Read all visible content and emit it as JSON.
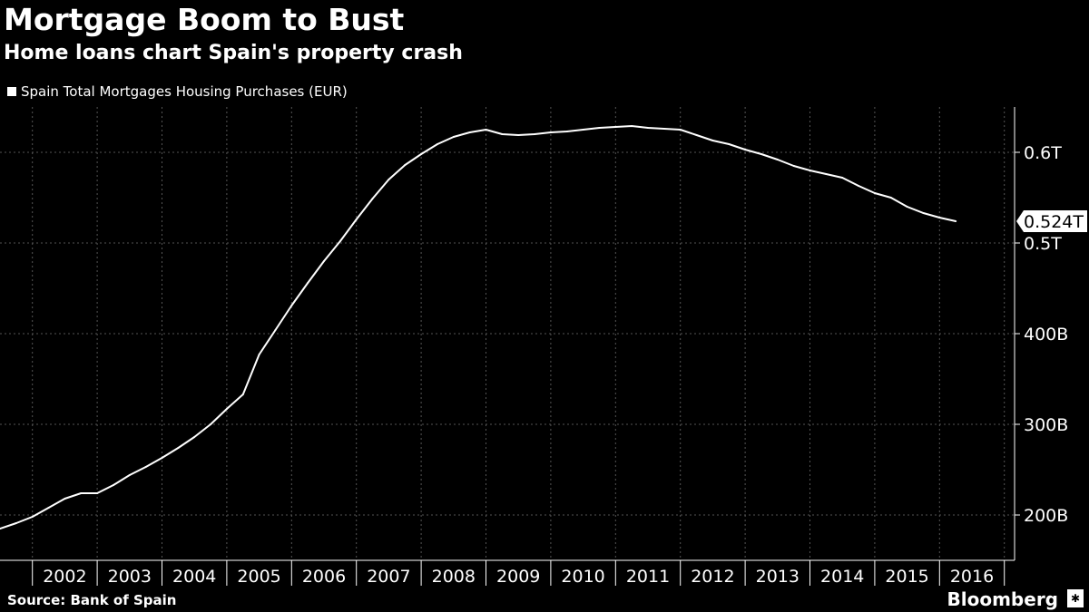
{
  "header": {
    "title": "Mortgage Boom to Bust",
    "subtitle": "Home loans chart Spain's property crash"
  },
  "footer": {
    "source": "Source:  Bank of Spain",
    "brand": "Bloomberg",
    "brand_icon": "bloomberg-terminal-icon"
  },
  "colors": {
    "background": "#000000",
    "line": "#ffffff",
    "grid": "#555555"
  },
  "chart_data": {
    "type": "line",
    "title": "Mortgage Boom to Bust",
    "subtitle": "Home loans chart Spain's property crash",
    "xlabel": "",
    "ylabel": "",
    "x_tick_labels": [
      "2002",
      "2003",
      "2004",
      "2005",
      "2006",
      "2007",
      "2008",
      "2009",
      "2010",
      "2011",
      "2012",
      "2013",
      "2014",
      "2015",
      "2016"
    ],
    "y_tick_values": [
      200,
      300,
      400,
      500,
      600
    ],
    "y_tick_labels": [
      "200B",
      "300B",
      "400B",
      "0.5T",
      "0.6T"
    ],
    "ylim": [
      150,
      650
    ],
    "x_range": [
      2001.5,
      2016.85
    ],
    "grid": true,
    "legend_position": "top-left",
    "last_value_label": "0.524T",
    "series": [
      {
        "name": "Spain Total Mortgages Housing Purchases (EUR)",
        "x": [
          2001.5,
          2001.75,
          2002.0,
          2002.25,
          2002.5,
          2002.75,
          2003.0,
          2003.25,
          2003.5,
          2003.75,
          2004.0,
          2004.25,
          2004.5,
          2004.75,
          2005.0,
          2005.25,
          2005.5,
          2005.75,
          2006.0,
          2006.25,
          2006.5,
          2006.75,
          2007.0,
          2007.25,
          2007.5,
          2007.75,
          2008.0,
          2008.25,
          2008.5,
          2008.75,
          2009.0,
          2009.25,
          2009.5,
          2009.75,
          2010.0,
          2010.25,
          2010.5,
          2010.75,
          2011.0,
          2011.25,
          2011.5,
          2011.75,
          2012.0,
          2012.25,
          2012.5,
          2012.75,
          2013.0,
          2013.25,
          2013.5,
          2013.75,
          2014.0,
          2014.25,
          2014.5,
          2014.75,
          2015.0,
          2015.25,
          2015.5,
          2015.75,
          2016.0,
          2016.25
        ],
        "values": [
          185,
          191,
          198,
          208,
          218,
          224,
          224,
          233,
          244,
          253,
          263,
          274,
          286,
          300,
          317,
          333,
          377,
          404,
          431,
          456,
          480,
          502,
          526,
          549,
          570,
          586,
          598,
          609,
          617,
          622,
          625,
          620,
          619,
          620,
          622,
          623,
          625,
          627,
          628,
          629,
          627,
          626,
          625,
          619,
          613,
          609,
          603,
          598,
          592,
          585,
          580,
          576,
          572,
          563,
          555,
          550,
          540,
          533,
          528,
          524
        ]
      }
    ]
  }
}
